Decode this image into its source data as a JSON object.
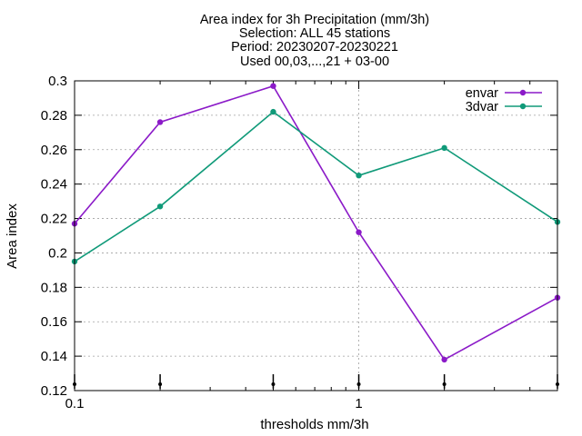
{
  "chart_data": {
    "type": "line",
    "title_lines": [
      "Area index  for 3h Precipitation (mm/3h)",
      "Selection: ALL      45 stations",
      "Period: 20230207-20230221",
      "Used 00,03,...,21 + 03-00"
    ],
    "xlabel": "thresholds mm/3h",
    "ylabel": "Area index",
    "xscale": "log",
    "xlim": [
      0.1,
      5
    ],
    "ylim": [
      0.12,
      0.3
    ],
    "x_ticks": [
      0.1,
      1
    ],
    "x_tick_labels": [
      "0.1",
      "1"
    ],
    "y_ticks": [
      0.12,
      0.14,
      0.16,
      0.18,
      0.2,
      0.22,
      0.24,
      0.26,
      0.28,
      0.3
    ],
    "y_tick_labels": [
      "0.12",
      "0.14",
      "0.16",
      "0.18",
      "0.2",
      "0.22",
      "0.24",
      "0.26",
      "0.28",
      "0.3"
    ],
    "grid": true,
    "legend_position": "top-right",
    "x": [
      0.1,
      0.2,
      0.5,
      1,
      2,
      5
    ],
    "series": [
      {
        "name": "envar",
        "color": "#8b1ac8",
        "values": [
          0.217,
          0.276,
          0.297,
          0.212,
          0.138,
          0.174
        ]
      },
      {
        "name": "3dvar",
        "color": "#109a79",
        "values": [
          0.195,
          0.227,
          0.282,
          0.245,
          0.261,
          0.218
        ]
      }
    ]
  }
}
